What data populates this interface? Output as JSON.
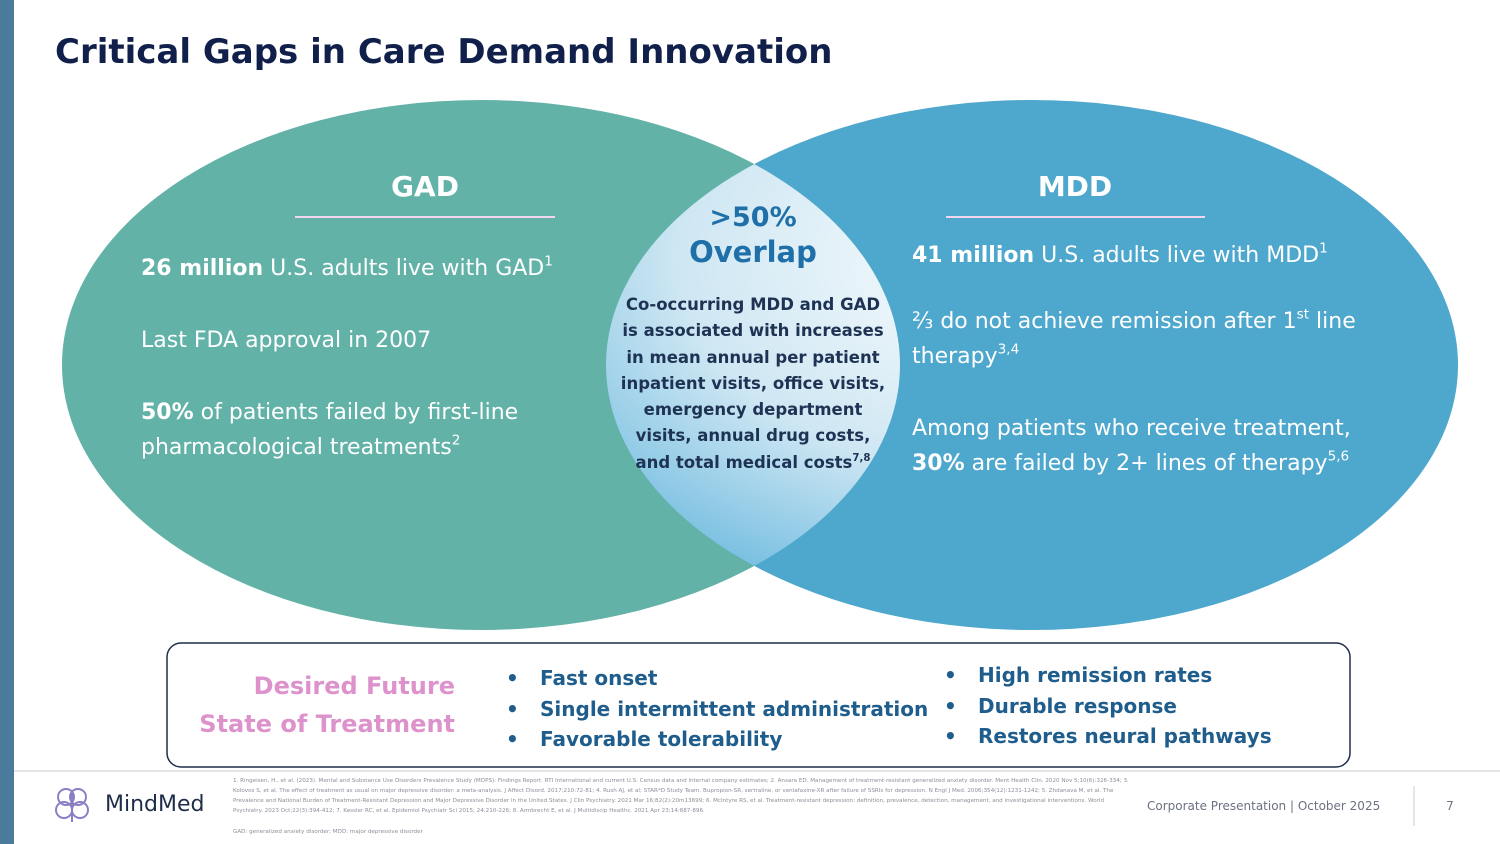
{
  "title": "Critical Gaps in Care Demand Innovation",
  "gad": {
    "heading": "GAD",
    "items": [
      [
        "26 million",
        "U.S. adults live with GAD",
        "1"
      ],
      [
        "Last FDA approval in 2007"
      ],
      [
        "50%",
        "of patients failed by first-line pharmacological treatments",
        "2"
      ]
    ]
  },
  "mdd": {
    "heading": "MDD",
    "items": [
      [
        "41 million",
        "U.S. adults live with MDD",
        "1"
      ],
      [
        "⅔ do not achieve remission after 1",
        "st",
        "line therapy",
        "3,4"
      ],
      [
        "Among patients who receive treatment,",
        "30%",
        "are failed by 2+ lines of therapy",
        "5,6"
      ]
    ]
  },
  "overlap": {
    "heading": ">50%",
    "subheading": "Overlap",
    "body": "Co-occurring MDD and GAD is associated with increases in mean annual per patient inpatient visits, office visits, emergency department visits, annual drug costs, and total medical costs",
    "sup": "7,8"
  },
  "desired": {
    "label": [
      "Desired Future",
      "State of Treatment"
    ],
    "left_bullets": [
      "Fast onset",
      "Single intermittent administration",
      "Favorable tolerability"
    ],
    "right_bullets": [
      "High remission rates",
      "Durable response",
      "Restores neural pathways"
    ]
  },
  "footer": {
    "logo": "MindMed",
    "references": "1. Ringeisen, H., et al. (2023). Mental and Substance Use Disorders Prevalence Study (MDPS): Findings Report. RTI International and current U.S. Census data and internal company estimates; 2. Ansara ED. Management of treatment-resistant generalized anxiety disorder. Ment Health Clin. 2020 Nov 5;10(6):326-334; 3. Kolovos S, et al. The effect of treatment as usual on major depressive disorder: a meta-analysis. J Affect Disord. 2017;210:72-81; 4. Rush AJ, et al; STAR*D Study Team. Bupropion-SR, sertraline, or venlafaxine-XR after failure of SSRIs for depression. N Engl J Med. 2006;354(12):1231-1242; 5. Zhdanava M, et al. The Prevalence and National Burden of Treatment-Resistant Depression and Major Depressive Disorder in the United States. J Clin Psychiatry. 2021 Mar 16;82(2):20m13699; 6. McIntyre RS, et al. Treatment-resistant depression: definition, prevalence, detection, management, and investigational interventions. World Psychiatry. 2023 Oct;22(3):394-412; 7. Kessler RC, et al. Epidemiol Psychiatr Sci 2015; 24:210-226; 8. Armbrecht E, et al. J Multidiscip Healthc. 2021 Apr 23;14:887-896.",
    "abbreviations": "GAD: generalized anxiety disorder; MDD: major depressive disorder",
    "presentation": "Corporate Presentation | October 2025",
    "page": "7"
  }
}
